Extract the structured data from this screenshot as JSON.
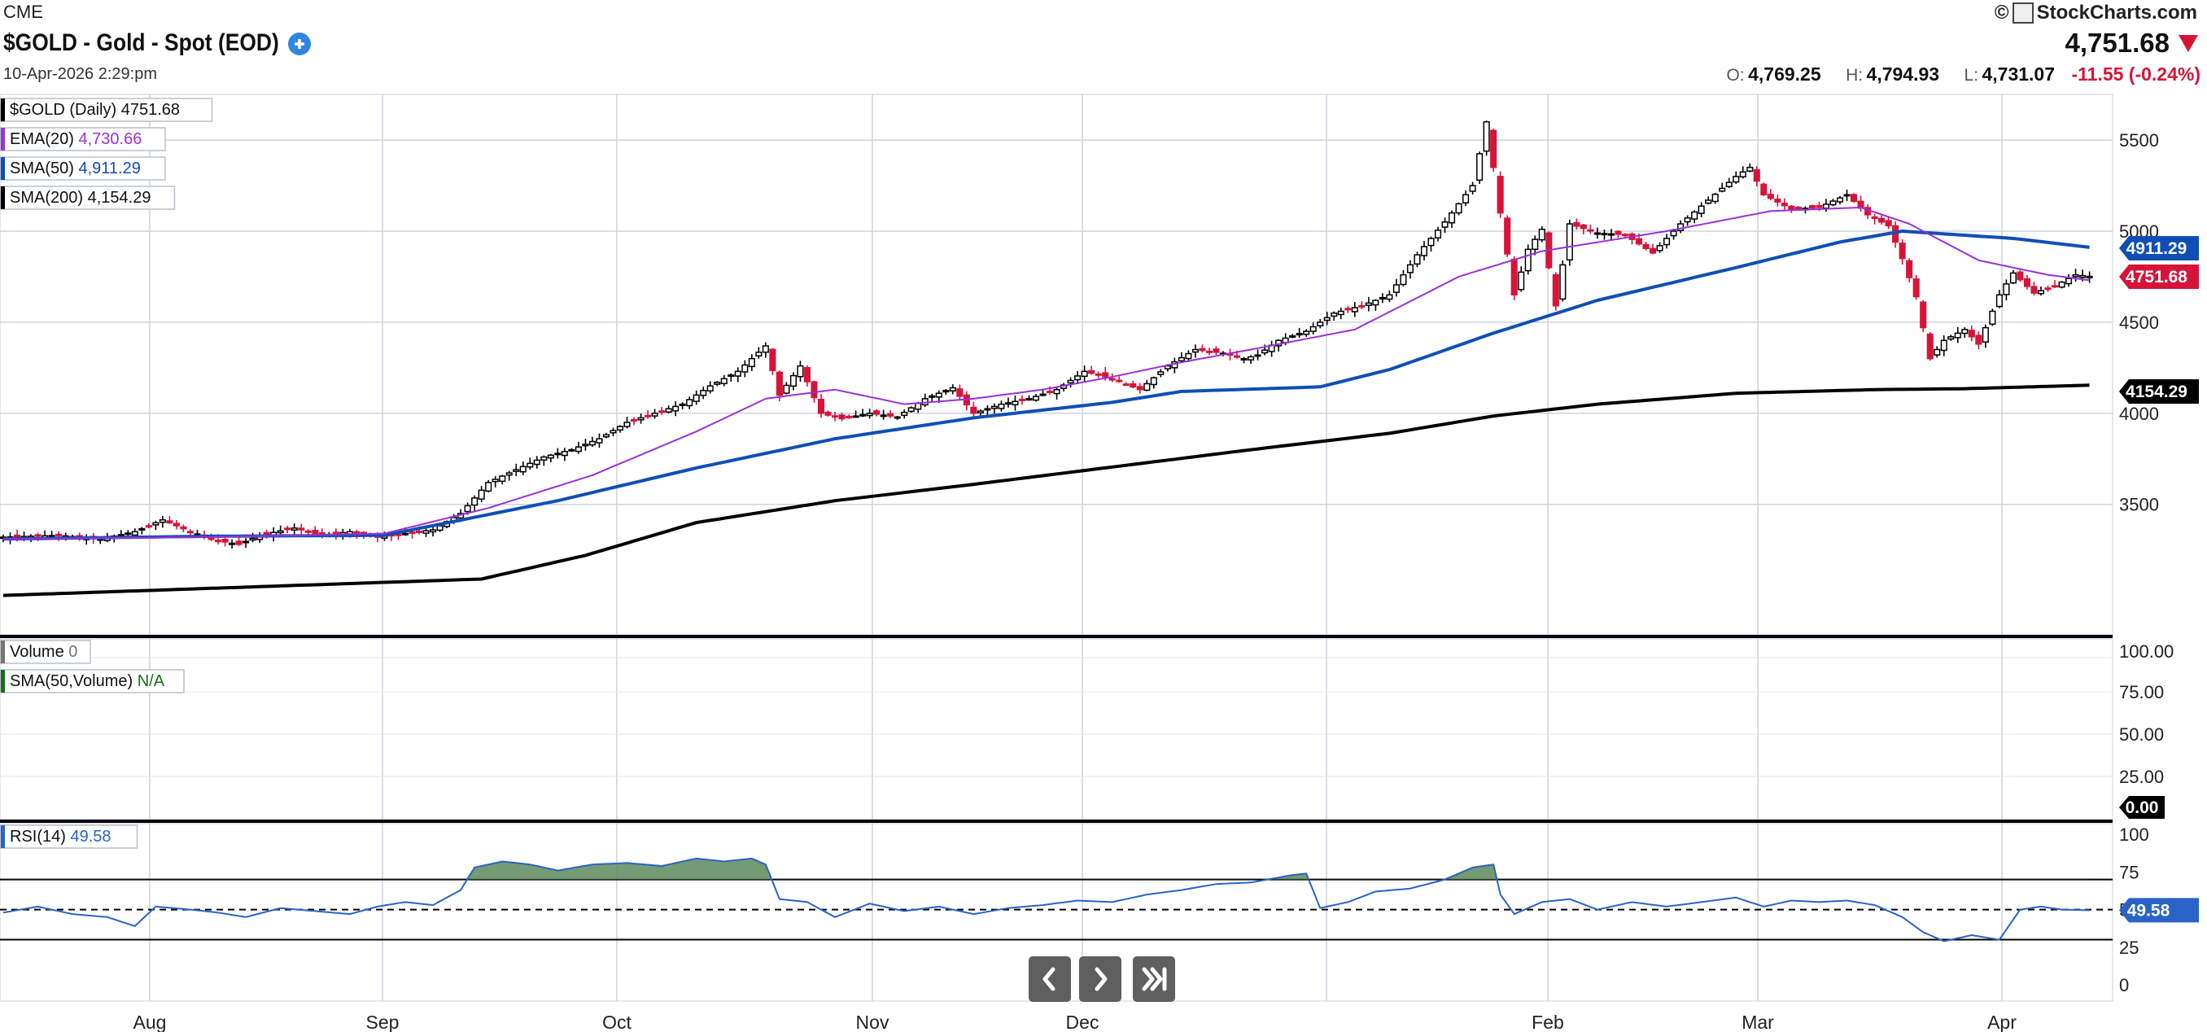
{
  "header": {
    "exchange": "CME",
    "title": "$GOLD - Gold - Spot (EOD)",
    "datetime": "10-Apr-2026 2:29:pm",
    "copyright": "©",
    "brand": "StockCharts.com",
    "last_price": "4,751.68",
    "ohlc": {
      "o_label": "O:",
      "o_value": "4,769.25",
      "h_label": "H:",
      "h_value": "4,794.93",
      "l_label": "L:",
      "l_value": "4,731.07",
      "change": "-11.55 (-0.24%)"
    }
  },
  "colors": {
    "up": "#000000",
    "down": "#d6143a",
    "ema20": "#9b30d9",
    "sma50": "#0f4fb5",
    "sma200": "#000000",
    "rsi_line": "#2a63c8",
    "rsi_fill": "#5c8a5a",
    "vol_sma": "#1a6d1a"
  },
  "navigation": {
    "prev_icon": "chevron-left-icon",
    "next_icon": "chevron-right-icon",
    "end_icon": "skip-to-end-icon"
  },
  "chart_data": [
    {
      "type": "candlestick",
      "title": "$GOLD (Daily)",
      "yticks": [
        3500,
        4000,
        4500,
        5000,
        5500
      ],
      "x_month_labels": [
        "Aug",
        "Sep",
        "Oct",
        "Nov",
        "Dec",
        "Feb",
        "Mar",
        "Apr"
      ],
      "legend": [
        {
          "name": "$GOLD (Daily)",
          "value": "4751.68"
        },
        {
          "name": "EMA(20)",
          "value": "4,730.66"
        },
        {
          "name": "SMA(50)",
          "value": "4,911.29"
        },
        {
          "name": "SMA(200)",
          "value": "4,154.29"
        }
      ],
      "axis_tags": [
        {
          "series": "SMA(50)",
          "value": "4911.29"
        },
        {
          "series": "$GOLD",
          "value": "4751.68"
        },
        {
          "series": "SMA(200)",
          "value": "4154.29"
        }
      ],
      "close_path": [
        [
          0,
          3320
        ],
        [
          8,
          3330
        ],
        [
          14,
          3310
        ],
        [
          19,
          3350
        ],
        [
          23,
          3415
        ],
        [
          27,
          3350
        ],
        [
          31,
          3300
        ],
        [
          34,
          3280
        ],
        [
          37,
          3330
        ],
        [
          42,
          3370
        ],
        [
          46,
          3330
        ],
        [
          50,
          3350
        ],
        [
          54,
          3320
        ],
        [
          58,
          3340
        ],
        [
          62,
          3360
        ],
        [
          66,
          3450
        ],
        [
          70,
          3620
        ],
        [
          74,
          3690
        ],
        [
          78,
          3760
        ],
        [
          82,
          3800
        ],
        [
          86,
          3860
        ],
        [
          90,
          3950
        ],
        [
          94,
          4000
        ],
        [
          98,
          4050
        ],
        [
          102,
          4150
        ],
        [
          106,
          4230
        ],
        [
          110,
          4370
        ],
        [
          112,
          4100
        ],
        [
          115,
          4260
        ],
        [
          118,
          4000
        ],
        [
          121,
          3970
        ],
        [
          125,
          4000
        ],
        [
          129,
          3980
        ],
        [
          133,
          4080
        ],
        [
          137,
          4140
        ],
        [
          140,
          4000
        ],
        [
          144,
          4050
        ],
        [
          148,
          4080
        ],
        [
          152,
          4130
        ],
        [
          156,
          4230
        ],
        [
          160,
          4190
        ],
        [
          164,
          4130
        ],
        [
          168,
          4260
        ],
        [
          172,
          4350
        ],
        [
          176,
          4330
        ],
        [
          179,
          4300
        ],
        [
          181,
          4320
        ],
        [
          184,
          4400
        ],
        [
          188,
          4450
        ],
        [
          192,
          4550
        ],
        [
          196,
          4590
        ],
        [
          200,
          4650
        ],
        [
          204,
          4870
        ],
        [
          208,
          5050
        ],
        [
          212,
          5250
        ],
        [
          214,
          5600
        ],
        [
          216,
          5100
        ],
        [
          218,
          4650
        ],
        [
          220,
          4900
        ],
        [
          222,
          5010
        ],
        [
          224,
          4590
        ],
        [
          226,
          5040
        ],
        [
          230,
          4990
        ],
        [
          234,
          4980
        ],
        [
          238,
          4880
        ],
        [
          242,
          5040
        ],
        [
          246,
          5170
        ],
        [
          250,
          5300
        ],
        [
          252,
          5350
        ],
        [
          254,
          5200
        ],
        [
          258,
          5120
        ],
        [
          262,
          5130
        ],
        [
          266,
          5200
        ],
        [
          269,
          5090
        ],
        [
          272,
          5030
        ],
        [
          274,
          4850
        ],
        [
          276,
          4640
        ],
        [
          278,
          4300
        ],
        [
          280,
          4400
        ],
        [
          283,
          4460
        ],
        [
          285,
          4380
        ],
        [
          288,
          4650
        ],
        [
          290,
          4770
        ],
        [
          293,
          4660
        ],
        [
          296,
          4700
        ],
        [
          299,
          4760
        ],
        [
          301,
          4751.68
        ]
      ],
      "sma200_path": [
        [
          0,
          3000
        ],
        [
          69,
          3090
        ],
        [
          84,
          3220
        ],
        [
          100,
          3400
        ],
        [
          120,
          3520
        ],
        [
          140,
          3610
        ],
        [
          160,
          3705
        ],
        [
          180,
          3800
        ],
        [
          200,
          3890
        ],
        [
          215,
          3985
        ],
        [
          230,
          4050
        ],
        [
          250,
          4110
        ],
        [
          270,
          4130
        ],
        [
          283,
          4135
        ],
        [
          301,
          4154.29
        ]
      ],
      "sma50_path": [
        [
          0,
          3310
        ],
        [
          30,
          3325
        ],
        [
          55,
          3330
        ],
        [
          80,
          3520
        ],
        [
          100,
          3700
        ],
        [
          120,
          3860
        ],
        [
          140,
          3975
        ],
        [
          160,
          4060
        ],
        [
          170,
          4120
        ],
        [
          190,
          4145
        ],
        [
          200,
          4240
        ],
        [
          215,
          4440
        ],
        [
          230,
          4620
        ],
        [
          250,
          4800
        ],
        [
          265,
          4940
        ],
        [
          274,
          5000
        ],
        [
          290,
          4960
        ],
        [
          301,
          4911.29
        ]
      ],
      "ema20_path": [
        [
          0,
          3310
        ],
        [
          30,
          3320
        ],
        [
          55,
          3340
        ],
        [
          70,
          3480
        ],
        [
          85,
          3660
        ],
        [
          100,
          3900
        ],
        [
          110,
          4080
        ],
        [
          120,
          4130
        ],
        [
          130,
          4050
        ],
        [
          140,
          4080
        ],
        [
          150,
          4130
        ],
        [
          160,
          4200
        ],
        [
          170,
          4280
        ],
        [
          180,
          4350
        ],
        [
          195,
          4460
        ],
        [
          210,
          4750
        ],
        [
          222,
          4890
        ],
        [
          240,
          5000
        ],
        [
          255,
          5110
        ],
        [
          268,
          5130
        ],
        [
          275,
          5040
        ],
        [
          285,
          4840
        ],
        [
          295,
          4760
        ],
        [
          301,
          4730.66
        ]
      ]
    },
    {
      "type": "bar",
      "title": "Volume",
      "legend": [
        {
          "name": "Volume",
          "value": "0"
        },
        {
          "name": "SMA(50,Volume)",
          "value": "N/A"
        }
      ],
      "yticks": [
        "100.00",
        "75.00",
        "50.00",
        "25.00"
      ],
      "last_value_tag": "0.00",
      "values": []
    },
    {
      "type": "line",
      "title": "RSI(14)",
      "legend": [
        {
          "name": "RSI(14)",
          "value": "49.58"
        }
      ],
      "yticks": [
        0,
        25,
        50,
        75,
        100
      ],
      "overbought": 70,
      "oversold": 30,
      "midline": 50,
      "last_value_tag": "49.58",
      "rsi_path": [
        [
          0,
          48
        ],
        [
          5,
          52
        ],
        [
          10,
          47
        ],
        [
          15,
          45
        ],
        [
          19,
          39
        ],
        [
          22,
          52
        ],
        [
          27,
          50
        ],
        [
          31,
          48
        ],
        [
          35,
          45
        ],
        [
          40,
          51
        ],
        [
          45,
          49
        ],
        [
          50,
          47
        ],
        [
          54,
          52
        ],
        [
          58,
          55
        ],
        [
          62,
          53
        ],
        [
          66,
          63
        ],
        [
          68,
          78
        ],
        [
          72,
          82
        ],
        [
          76,
          80
        ],
        [
          80,
          76
        ],
        [
          85,
          80
        ],
        [
          90,
          81
        ],
        [
          95,
          79
        ],
        [
          100,
          84
        ],
        [
          104,
          82
        ],
        [
          108,
          84
        ],
        [
          110,
          80
        ],
        [
          112,
          57
        ],
        [
          116,
          55
        ],
        [
          120,
          45
        ],
        [
          125,
          54
        ],
        [
          130,
          49
        ],
        [
          135,
          52
        ],
        [
          140,
          47
        ],
        [
          145,
          51
        ],
        [
          150,
          53
        ],
        [
          155,
          56
        ],
        [
          160,
          55
        ],
        [
          165,
          60
        ],
        [
          170,
          63
        ],
        [
          175,
          67
        ],
        [
          180,
          68
        ],
        [
          186,
          73
        ],
        [
          188,
          74
        ],
        [
          190,
          51
        ],
        [
          194,
          55
        ],
        [
          198,
          62
        ],
        [
          203,
          64
        ],
        [
          208,
          70
        ],
        [
          212,
          78
        ],
        [
          215,
          80
        ],
        [
          216,
          60
        ],
        [
          218,
          47
        ],
        [
          222,
          55
        ],
        [
          226,
          57
        ],
        [
          230,
          50
        ],
        [
          235,
          55
        ],
        [
          240,
          52
        ],
        [
          245,
          55
        ],
        [
          250,
          58
        ],
        [
          254,
          52
        ],
        [
          258,
          56
        ],
        [
          262,
          55
        ],
        [
          266,
          56
        ],
        [
          270,
          53
        ],
        [
          274,
          45
        ],
        [
          277,
          35
        ],
        [
          280,
          29
        ],
        [
          284,
          33
        ],
        [
          288,
          30
        ],
        [
          291,
          50
        ],
        [
          294,
          52
        ],
        [
          297,
          50
        ],
        [
          301,
          49.58
        ]
      ]
    }
  ]
}
